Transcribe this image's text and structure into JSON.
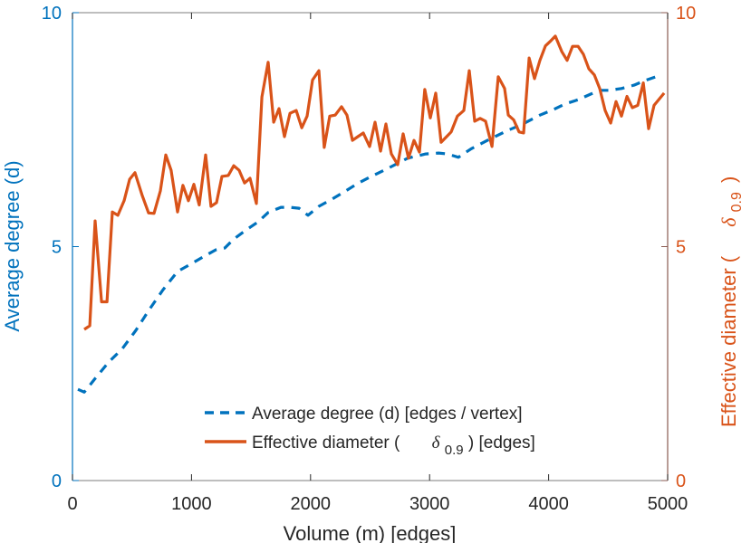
{
  "chart_data": {
    "type": "line",
    "title": "",
    "xlabel": "Volume (m) [edges]",
    "ylabel_left": "Average degree (d)",
    "ylabel_right_prefix": "Effective diameter (",
    "ylabel_right_symbol": "δ",
    "ylabel_right_subscript": "0.9",
    "ylabel_right_suffix": ")",
    "xlim": [
      0,
      5000
    ],
    "ylim_left": [
      0,
      10
    ],
    "ylim_right": [
      0,
      10
    ],
    "x_ticks": [
      "0",
      "1000",
      "2000",
      "3000",
      "4000",
      "5000"
    ],
    "x_tick_values": [
      0,
      1000,
      2000,
      3000,
      4000,
      5000
    ],
    "y_left_ticks": [
      "0",
      "5",
      "10"
    ],
    "y_left_tick_values": [
      0,
      5,
      10
    ],
    "y_right_ticks": [
      "0",
      "5",
      "10"
    ],
    "y_right_tick_values": [
      0,
      5,
      10
    ],
    "grid": false,
    "legend_placement": "bottom-center",
    "colors": {
      "left": "#0072BD",
      "right": "#D95319",
      "axis": "#262626"
    },
    "series": [
      {
        "name": "Average degree (d) [edges / vertex]",
        "axis": "left",
        "style": "dashed",
        "color": "#0072BD",
        "x": [
          46,
          99,
          190,
          304,
          419,
          533,
          647,
          761,
          883,
          990,
          1111,
          1203,
          1279,
          1355,
          1461,
          1560,
          1644,
          1751,
          1827,
          1903,
          1979,
          2070,
          2184,
          2283,
          2390,
          2511,
          2648,
          2816,
          2968,
          3075,
          3151,
          3242,
          3349,
          3501,
          3653,
          3775,
          3927,
          4033,
          4140,
          4247,
          4353,
          4429,
          4505,
          4612,
          4718,
          4810,
          4924
        ],
        "values": [
          1.95,
          1.89,
          2.18,
          2.53,
          2.82,
          3.21,
          3.66,
          4.08,
          4.47,
          4.62,
          4.8,
          4.93,
          4.97,
          5.16,
          5.36,
          5.53,
          5.73,
          5.84,
          5.84,
          5.82,
          5.67,
          5.86,
          6.02,
          6.17,
          6.34,
          6.5,
          6.67,
          6.89,
          6.98,
          7.0,
          6.98,
          6.91,
          7.09,
          7.29,
          7.48,
          7.61,
          7.81,
          7.92,
          8.05,
          8.14,
          8.26,
          8.34,
          8.34,
          8.38,
          8.45,
          8.55,
          8.65
        ]
      },
      {
        "name": "Effective diameter (δ0.9) [edges]",
        "axis": "right",
        "style": "solid",
        "color": "#D95319",
        "x": [
          99,
          145,
          190,
          244,
          290,
          335,
          381,
          434,
          480,
          525,
          586,
          639,
          685,
          738,
          784,
          829,
          883,
          928,
          974,
          1020,
          1065,
          1119,
          1164,
          1210,
          1256,
          1309,
          1355,
          1400,
          1446,
          1492,
          1545,
          1591,
          1644,
          1690,
          1735,
          1781,
          1827,
          1880,
          1926,
          1971,
          2017,
          2070,
          2115,
          2161,
          2207,
          2260,
          2306,
          2352,
          2397,
          2443,
          2496,
          2542,
          2588,
          2633,
          2679,
          2732,
          2778,
          2823,
          2869,
          2915,
          2960,
          3006,
          3052,
          3097,
          3143,
          3181,
          3234,
          3288,
          3333,
          3379,
          3425,
          3470,
          3524,
          3577,
          3630,
          3661,
          3706,
          3752,
          3790,
          3836,
          3881,
          3927,
          3973,
          4011,
          4056,
          4110,
          4155,
          4201,
          4247,
          4292,
          4338,
          4384,
          4429,
          4475,
          4521,
          4566,
          4612,
          4658,
          4703,
          4749,
          4795,
          4840,
          4886,
          4970
        ],
        "values": [
          3.23,
          3.31,
          5.55,
          3.82,
          3.82,
          5.74,
          5.67,
          5.98,
          6.44,
          6.58,
          6.09,
          5.72,
          5.71,
          6.19,
          6.96,
          6.63,
          5.74,
          6.31,
          5.98,
          6.33,
          5.89,
          6.96,
          5.86,
          5.94,
          6.5,
          6.52,
          6.73,
          6.63,
          6.36,
          6.46,
          5.92,
          8.2,
          8.94,
          7.66,
          7.95,
          7.35,
          7.85,
          7.91,
          7.54,
          7.79,
          8.56,
          8.76,
          7.12,
          7.79,
          7.81,
          7.99,
          7.81,
          7.27,
          7.35,
          7.43,
          7.14,
          7.66,
          7.04,
          7.62,
          6.98,
          6.75,
          7.41,
          6.89,
          7.27,
          7.02,
          8.36,
          7.75,
          8.28,
          7.23,
          7.35,
          7.45,
          7.79,
          7.91,
          8.76,
          7.68,
          7.74,
          7.68,
          7.14,
          8.63,
          8.38,
          7.81,
          7.71,
          7.45,
          7.43,
          9.03,
          8.59,
          8.98,
          9.29,
          9.38,
          9.5,
          9.17,
          8.98,
          9.28,
          9.28,
          9.11,
          8.8,
          8.67,
          8.38,
          7.91,
          7.64,
          8.1,
          7.79,
          8.21,
          7.97,
          8.02,
          8.5,
          7.52,
          8.02,
          8.28
        ]
      }
    ]
  }
}
